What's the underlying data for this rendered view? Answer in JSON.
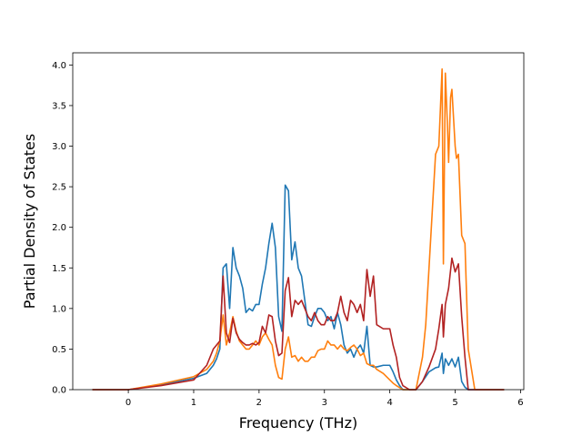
{
  "chart_data": {
    "type": "line",
    "title": "",
    "xlabel": "Frequency (THz)",
    "ylabel": "Partial Density of States",
    "xlim": [
      -0.85,
      6.05
    ],
    "ylim": [
      0,
      4.15
    ],
    "xticks": [
      "0",
      "1",
      "2",
      "3",
      "4",
      "5",
      "6"
    ],
    "yticks": [
      "0.0",
      "0.5",
      "1.0",
      "1.5",
      "2.0",
      "2.5",
      "3.0",
      "3.5",
      "4.0"
    ],
    "grid": false,
    "legend": "none",
    "series": [
      {
        "color": "#1f77b4",
        "x": [
          -0.55,
          0,
          0.5,
          1.0,
          1.2,
          1.3,
          1.35,
          1.4,
          1.45,
          1.5,
          1.55,
          1.6,
          1.65,
          1.7,
          1.75,
          1.8,
          1.85,
          1.9,
          1.95,
          2.0,
          2.05,
          2.1,
          2.15,
          2.2,
          2.25,
          2.3,
          2.35,
          2.4,
          2.45,
          2.5,
          2.55,
          2.6,
          2.65,
          2.7,
          2.75,
          2.8,
          2.85,
          2.9,
          2.95,
          3.0,
          3.05,
          3.1,
          3.15,
          3.2,
          3.25,
          3.3,
          3.35,
          3.4,
          3.45,
          3.5,
          3.55,
          3.6,
          3.65,
          3.7,
          3.75,
          3.8,
          3.9,
          4.0,
          4.05,
          4.1,
          4.15,
          4.2,
          4.3,
          4.4,
          4.5,
          4.6,
          4.7,
          4.75,
          4.8,
          4.82,
          4.85,
          4.9,
          4.95,
          5.0,
          5.05,
          5.1,
          5.15,
          5.2,
          5.3,
          5.5,
          5.75
        ],
        "y": [
          0,
          0,
          0.06,
          0.14,
          0.2,
          0.3,
          0.38,
          0.5,
          1.5,
          1.55,
          1.0,
          1.75,
          1.5,
          1.4,
          1.25,
          0.95,
          1.0,
          0.97,
          1.05,
          1.05,
          1.3,
          1.5,
          1.8,
          2.05,
          1.75,
          0.9,
          0.72,
          2.52,
          2.45,
          1.6,
          1.82,
          1.5,
          1.4,
          1.1,
          0.8,
          0.78,
          0.9,
          1.0,
          1.0,
          0.95,
          0.85,
          0.9,
          0.75,
          0.95,
          0.8,
          0.55,
          0.45,
          0.5,
          0.4,
          0.5,
          0.55,
          0.45,
          0.78,
          0.3,
          0.28,
          0.28,
          0.3,
          0.3,
          0.22,
          0.12,
          0.05,
          0,
          0,
          0,
          0.1,
          0.22,
          0.27,
          0.28,
          0.45,
          0.2,
          0.38,
          0.3,
          0.38,
          0.28,
          0.4,
          0.1,
          0.03,
          0,
          0,
          0,
          0
        ]
      },
      {
        "color": "#ff7f0e",
        "x": [
          -0.55,
          0,
          0.5,
          1.0,
          1.2,
          1.3,
          1.35,
          1.4,
          1.45,
          1.5,
          1.55,
          1.6,
          1.65,
          1.7,
          1.75,
          1.8,
          1.85,
          1.9,
          1.95,
          2.0,
          2.05,
          2.1,
          2.15,
          2.2,
          2.25,
          2.3,
          2.35,
          2.4,
          2.45,
          2.5,
          2.55,
          2.6,
          2.65,
          2.7,
          2.75,
          2.8,
          2.85,
          2.9,
          2.95,
          3.0,
          3.05,
          3.1,
          3.15,
          3.2,
          3.25,
          3.3,
          3.35,
          3.4,
          3.45,
          3.5,
          3.55,
          3.6,
          3.65,
          3.7,
          3.75,
          3.8,
          3.9,
          4.0,
          4.05,
          4.1,
          4.2,
          4.3,
          4.4,
          4.5,
          4.55,
          4.6,
          4.65,
          4.7,
          4.75,
          4.8,
          4.82,
          4.85,
          4.88,
          4.9,
          4.93,
          4.95,
          5.0,
          5.02,
          5.05,
          5.1,
          5.15,
          5.2,
          5.3,
          5.5,
          5.75
        ],
        "y": [
          0,
          0,
          0.07,
          0.16,
          0.25,
          0.35,
          0.45,
          0.6,
          0.92,
          0.55,
          0.7,
          0.9,
          0.72,
          0.6,
          0.55,
          0.5,
          0.5,
          0.55,
          0.6,
          0.55,
          0.65,
          0.7,
          0.62,
          0.55,
          0.3,
          0.15,
          0.13,
          0.5,
          0.65,
          0.4,
          0.42,
          0.35,
          0.4,
          0.35,
          0.35,
          0.4,
          0.4,
          0.48,
          0.5,
          0.5,
          0.6,
          0.55,
          0.55,
          0.5,
          0.55,
          0.5,
          0.48,
          0.52,
          0.55,
          0.5,
          0.42,
          0.45,
          0.32,
          0.3,
          0.3,
          0.25,
          0.2,
          0.12,
          0.08,
          0.05,
          0,
          0,
          0,
          0.4,
          0.8,
          1.5,
          2.2,
          2.9,
          3.0,
          3.95,
          1.55,
          3.9,
          3.3,
          2.8,
          3.6,
          3.7,
          3.0,
          2.85,
          2.9,
          1.9,
          1.8,
          0.5,
          0,
          0,
          0
        ]
      },
      {
        "color": "#b22222",
        "x": [
          -0.55,
          0,
          0.5,
          1.0,
          1.2,
          1.3,
          1.35,
          1.4,
          1.45,
          1.5,
          1.55,
          1.6,
          1.65,
          1.7,
          1.75,
          1.8,
          1.85,
          1.9,
          1.95,
          2.0,
          2.05,
          2.1,
          2.15,
          2.2,
          2.25,
          2.3,
          2.35,
          2.4,
          2.45,
          2.5,
          2.55,
          2.6,
          2.65,
          2.7,
          2.75,
          2.8,
          2.85,
          2.9,
          2.95,
          3.0,
          3.05,
          3.1,
          3.15,
          3.2,
          3.25,
          3.3,
          3.35,
          3.4,
          3.45,
          3.5,
          3.55,
          3.6,
          3.65,
          3.7,
          3.75,
          3.8,
          3.9,
          4.0,
          4.05,
          4.1,
          4.15,
          4.2,
          4.3,
          4.4,
          4.5,
          4.6,
          4.7,
          4.75,
          4.8,
          4.82,
          4.85,
          4.9,
          4.95,
          5.0,
          5.05,
          5.1,
          5.15,
          5.2,
          5.3,
          5.5,
          5.75
        ],
        "y": [
          0,
          0,
          0.05,
          0.12,
          0.3,
          0.5,
          0.55,
          0.6,
          1.4,
          0.7,
          0.58,
          0.88,
          0.7,
          0.62,
          0.58,
          0.55,
          0.55,
          0.57,
          0.55,
          0.58,
          0.78,
          0.7,
          0.92,
          0.9,
          0.6,
          0.42,
          0.45,
          1.22,
          1.38,
          0.9,
          1.1,
          1.05,
          1.1,
          1.0,
          0.9,
          0.85,
          0.95,
          0.85,
          0.8,
          0.8,
          0.9,
          0.85,
          0.85,
          0.95,
          1.15,
          0.95,
          0.85,
          1.1,
          1.05,
          0.95,
          1.05,
          0.85,
          1.48,
          1.15,
          1.4,
          0.8,
          0.75,
          0.75,
          0.55,
          0.4,
          0.15,
          0.05,
          0,
          0,
          0.1,
          0.28,
          0.5,
          0.75,
          1.05,
          0.65,
          1.05,
          1.25,
          1.62,
          1.45,
          1.55,
          0.9,
          0.4,
          0,
          0,
          0,
          0
        ]
      }
    ]
  }
}
